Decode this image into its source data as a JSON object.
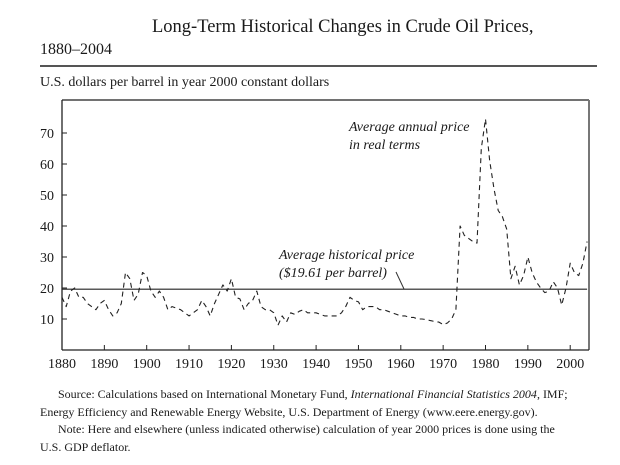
{
  "header": {
    "title_line1": "Long-Term Historical Changes in Crude Oil Prices,",
    "title_line2": "1880–2004",
    "units_label": "U.S. dollars per barrel in year 2000 constant dollars"
  },
  "chart_data": {
    "type": "line",
    "title": "Long-Term Historical Changes in Crude Oil Prices, 1880–2004",
    "xlabel": "",
    "ylabel": "U.S. dollars per barrel in year 2000 constant dollars",
    "xlim": [
      1880,
      2004
    ],
    "ylim": [
      0,
      80
    ],
    "x_ticks": [
      1880,
      1890,
      1900,
      1910,
      1920,
      1930,
      1940,
      1950,
      1960,
      1970,
      1980,
      1990,
      2000
    ],
    "x_tick_labels": [
      "1880",
      "1890",
      "1900",
      "1910",
      "1920",
      "1930",
      "1940",
      "1950",
      "1960",
      "1970",
      "1980",
      "1990",
      "2000"
    ],
    "y_ticks": [
      10,
      20,
      30,
      40,
      50,
      60,
      70
    ],
    "y_tick_labels": [
      "10",
      "20",
      "30",
      "40",
      "50",
      "60",
      "70"
    ],
    "grid": false,
    "series": [
      {
        "name": "Average annual price in real terms",
        "style": "dashed",
        "x": [
          1880,
          1881,
          1882,
          1883,
          1884,
          1885,
          1886,
          1887,
          1888,
          1889,
          1890,
          1891,
          1892,
          1893,
          1894,
          1895,
          1896,
          1897,
          1898,
          1899,
          1900,
          1901,
          1902,
          1903,
          1904,
          1905,
          1906,
          1907,
          1908,
          1909,
          1910,
          1911,
          1912,
          1913,
          1914,
          1915,
          1916,
          1917,
          1918,
          1919,
          1920,
          1921,
          1922,
          1923,
          1924,
          1925,
          1926,
          1927,
          1928,
          1929,
          1930,
          1931,
          1932,
          1933,
          1934,
          1935,
          1936,
          1937,
          1938,
          1939,
          1940,
          1941,
          1942,
          1943,
          1944,
          1945,
          1946,
          1947,
          1948,
          1949,
          1950,
          1951,
          1952,
          1953,
          1954,
          1955,
          1956,
          1957,
          1958,
          1959,
          1960,
          1961,
          1962,
          1963,
          1964,
          1965,
          1966,
          1967,
          1968,
          1969,
          1970,
          1971,
          1972,
          1973,
          1974,
          1975,
          1976,
          1977,
          1978,
          1979,
          1980,
          1981,
          1982,
          1983,
          1984,
          1985,
          1986,
          1987,
          1988,
          1989,
          1990,
          1991,
          1992,
          1993,
          1994,
          1995,
          1996,
          1997,
          1998,
          1999,
          2000,
          2001,
          2002,
          2003,
          2004
        ],
        "values": [
          17,
          14,
          19,
          20,
          17,
          17,
          15,
          14,
          13,
          15,
          16,
          13,
          11,
          12,
          15,
          25,
          23,
          16,
          18,
          25,
          24,
          19,
          17,
          19,
          17,
          13,
          14,
          13.5,
          13,
          12,
          11,
          12,
          13,
          16,
          14,
          11,
          15,
          18,
          21,
          19,
          23,
          17,
          16.5,
          13,
          15,
          16,
          19,
          14,
          13,
          13,
          12,
          8,
          11,
          9,
          12,
          11.5,
          12.5,
          13,
          12,
          12,
          12,
          11.5,
          11,
          11,
          11,
          11,
          12,
          14,
          17,
          16,
          15.5,
          13,
          14,
          14,
          14,
          13,
          13,
          12.5,
          12,
          11.5,
          11,
          11,
          10.5,
          10.5,
          10,
          10,
          9.8,
          9.5,
          9.2,
          9,
          8.2,
          8.7,
          10,
          13,
          40,
          37,
          36,
          35,
          34.5,
          65,
          74.5,
          61,
          52,
          45,
          43,
          39,
          23,
          27,
          21,
          24,
          30,
          25,
          22,
          20,
          18.5,
          19,
          22,
          20,
          14.5,
          20,
          28,
          25,
          24,
          28,
          35
        ]
      },
      {
        "name": "Average historical price",
        "style": "solid",
        "x": [
          1880,
          2004
        ],
        "values": [
          19.61,
          19.61
        ]
      }
    ],
    "annotations": [
      {
        "text_line1": "Average annual price",
        "text_line2": "in real terms",
        "target": "series 1"
      },
      {
        "text_line1": "Average historical price",
        "text_line2": "($19.61 per barrel)",
        "target": "series 2",
        "value": 19.61
      }
    ],
    "legend": "none"
  },
  "footer": {
    "source_prefix": "Source: Calculations based on International Monetary Fund, ",
    "source_italic": "International Financial Statistics 2004",
    "source_suffix": ", IMF;",
    "source_line2": "Energy Efficiency and Renewable Energy Website, U.S. Department of Energy (www.eere.energy.gov).",
    "note_line1": "Note: Here and elsewhere (unless indicated otherwise) calculation of year 2000 prices is done using the",
    "note_line2": "U.S. GDP deflator."
  }
}
